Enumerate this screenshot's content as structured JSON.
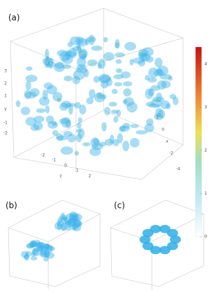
{
  "panels": [
    {
      "label": "(a)",
      "y_axis": {
        "title": "y",
        "ticks": [
          "3",
          "2",
          "1",
          "-1",
          "-2"
        ]
      },
      "z_axis": {
        "title": "z",
        "ticks": [
          "-2",
          "-1",
          "0",
          "1",
          "2"
        ]
      },
      "x_axis": {
        "title": "x",
        "ticks": [
          "2",
          "0",
          "-2",
          "-4"
        ]
      }
    },
    {
      "label": "(b)"
    },
    {
      "label": "(c)"
    }
  ],
  "colorbar": {
    "lim": [
      0,
      4.4
    ],
    "ticks": [
      0,
      1,
      2,
      3,
      4
    ]
  }
}
